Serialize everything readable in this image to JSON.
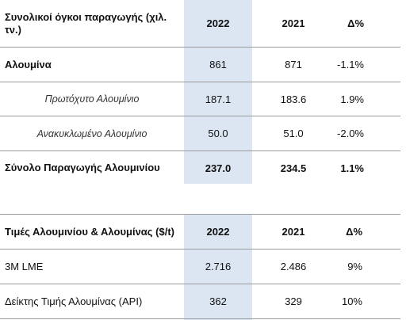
{
  "table1": {
    "headers": [
      "Συνολικοί όγκοι παραγωγής (χιλ. τν.)",
      "2022",
      "2021",
      "Δ%"
    ],
    "rows": [
      {
        "label": "Αλουμίνα",
        "v2022": "861",
        "v2021": "871",
        "delta": "-1.1%"
      },
      {
        "label": "Πρωτόχυτο Αλουμίνιο",
        "v2022": "187.1",
        "v2021": "183.6",
        "delta": "1.9%"
      },
      {
        "label": "Ανακυκλωμένο Αλουμίνιο",
        "v2022": "50.0",
        "v2021": "51.0",
        "delta": "-2.0%"
      },
      {
        "label": "Σύνολο Παραγωγής Αλουμινίου",
        "v2022": "237.0",
        "v2021": "234.5",
        "delta": "1.1%"
      }
    ]
  },
  "table2": {
    "headers": [
      "Τιμές Αλουμινίου & Αλουμίνας ($/t)",
      "2022",
      "2021",
      "Δ%"
    ],
    "rows": [
      {
        "label": "3M LME",
        "v2022": "2.716",
        "v2021": "2.486",
        "delta": "9%"
      },
      {
        "label": "Δείκτης Τιμής Αλουμίνας (API)",
        "v2022": "362",
        "v2021": "329",
        "delta": "10%"
      }
    ]
  },
  "colors": {
    "highlight": "#dbe6f2",
    "border": "#9a9a9a"
  }
}
